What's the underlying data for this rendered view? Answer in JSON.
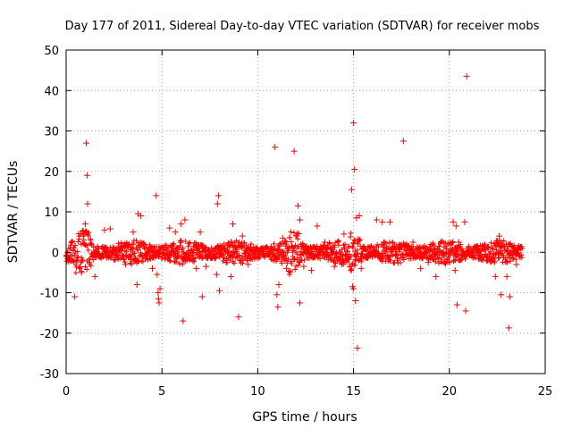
{
  "chart_data": {
    "type": "scatter",
    "title": "Day 177 of 2011, Sidereal Day-to-day VTEC variation (SDTVAR) for receiver mobs",
    "xlabel": "GPS time / hours",
    "ylabel": "SDTVAR / TECUs",
    "xlim": [
      0,
      25
    ],
    "ylim": [
      -30,
      50
    ],
    "xticks": [
      0,
      5,
      10,
      15,
      20,
      25
    ],
    "yticks": [
      -30,
      -20,
      -10,
      0,
      10,
      20,
      30,
      40,
      50
    ],
    "grid": true,
    "marker": "+",
    "color": "#ff0000",
    "series": [
      {
        "name": "SDTVAR",
        "band": {
          "x_range": [
            0.0,
            23.8
          ],
          "typical_range": [
            -3,
            3
          ],
          "note": "dense continuous cluster of points near 0 TECU"
        },
        "points": [
          [
            0.45,
            -11.0
          ],
          [
            0.8,
            -5.0
          ],
          [
            0.9,
            4.5
          ],
          [
            1.0,
            7.0
          ],
          [
            1.05,
            27.0
          ],
          [
            1.1,
            19.0
          ],
          [
            1.12,
            12.0
          ],
          [
            1.5,
            -6.0
          ],
          [
            2.0,
            5.5
          ],
          [
            2.3,
            5.8
          ],
          [
            3.1,
            -3.0
          ],
          [
            3.5,
            5.0
          ],
          [
            3.7,
            -8.0
          ],
          [
            3.75,
            9.5
          ],
          [
            3.9,
            9.0
          ],
          [
            4.5,
            -4.0
          ],
          [
            4.7,
            14.0
          ],
          [
            4.75,
            -5.5
          ],
          [
            4.8,
            -10.0
          ],
          [
            4.82,
            -11.5
          ],
          [
            4.85,
            -12.5
          ],
          [
            4.9,
            -9.0
          ],
          [
            5.4,
            6.0
          ],
          [
            5.7,
            5.0
          ],
          [
            6.0,
            7.0
          ],
          [
            6.1,
            -17.0
          ],
          [
            6.2,
            8.0
          ],
          [
            6.8,
            -4.0
          ],
          [
            7.0,
            5.0
          ],
          [
            7.1,
            -11.0
          ],
          [
            7.3,
            -3.5
          ],
          [
            7.85,
            -5.5
          ],
          [
            7.9,
            12.0
          ],
          [
            7.95,
            14.0
          ],
          [
            8.0,
            -9.5
          ],
          [
            8.6,
            -6.0
          ],
          [
            8.7,
            7.0
          ],
          [
            9.0,
            -16.0
          ],
          [
            9.2,
            4.0
          ],
          [
            9.5,
            -3.0
          ],
          [
            10.9,
            26.0
          ],
          [
            11.0,
            -10.5
          ],
          [
            11.05,
            -13.5
          ],
          [
            11.1,
            -8.0
          ],
          [
            11.3,
            3.5
          ],
          [
            11.5,
            -4.0
          ],
          [
            11.9,
            25.0
          ],
          [
            12.1,
            11.5
          ],
          [
            12.2,
            8.0
          ],
          [
            12.2,
            -12.5
          ],
          [
            12.4,
            -3.5
          ],
          [
            12.8,
            -4.5
          ],
          [
            13.1,
            6.5
          ],
          [
            13.5,
            2.5
          ],
          [
            14.0,
            -3.5
          ],
          [
            14.5,
            4.5
          ],
          [
            14.8,
            -3.5
          ],
          [
            14.9,
            15.5
          ],
          [
            14.95,
            -8.5
          ],
          [
            15.0,
            32.0
          ],
          [
            15.0,
            -9.0
          ],
          [
            15.05,
            20.5
          ],
          [
            15.1,
            -12.0
          ],
          [
            15.15,
            8.5
          ],
          [
            15.2,
            -23.7
          ],
          [
            15.3,
            9.0
          ],
          [
            15.4,
            -4.0
          ],
          [
            16.2,
            8.0
          ],
          [
            16.5,
            7.5
          ],
          [
            16.9,
            7.5
          ],
          [
            17.6,
            27.5
          ],
          [
            18.1,
            2.5
          ],
          [
            18.5,
            -4.0
          ],
          [
            18.9,
            -2.5
          ],
          [
            19.3,
            -6.0
          ],
          [
            20.2,
            7.5
          ],
          [
            20.3,
            -4.5
          ],
          [
            20.35,
            6.5
          ],
          [
            20.4,
            -13.0
          ],
          [
            20.5,
            2.5
          ],
          [
            20.8,
            7.5
          ],
          [
            20.85,
            -14.5
          ],
          [
            20.9,
            43.5
          ],
          [
            22.0,
            -2.0
          ],
          [
            22.4,
            -6.0
          ],
          [
            22.6,
            4.0
          ],
          [
            22.7,
            -10.5
          ],
          [
            23.0,
            -6.0
          ],
          [
            23.1,
            -18.7
          ],
          [
            23.15,
            -11.0
          ],
          [
            23.5,
            -3.0
          ]
        ]
      }
    ]
  }
}
